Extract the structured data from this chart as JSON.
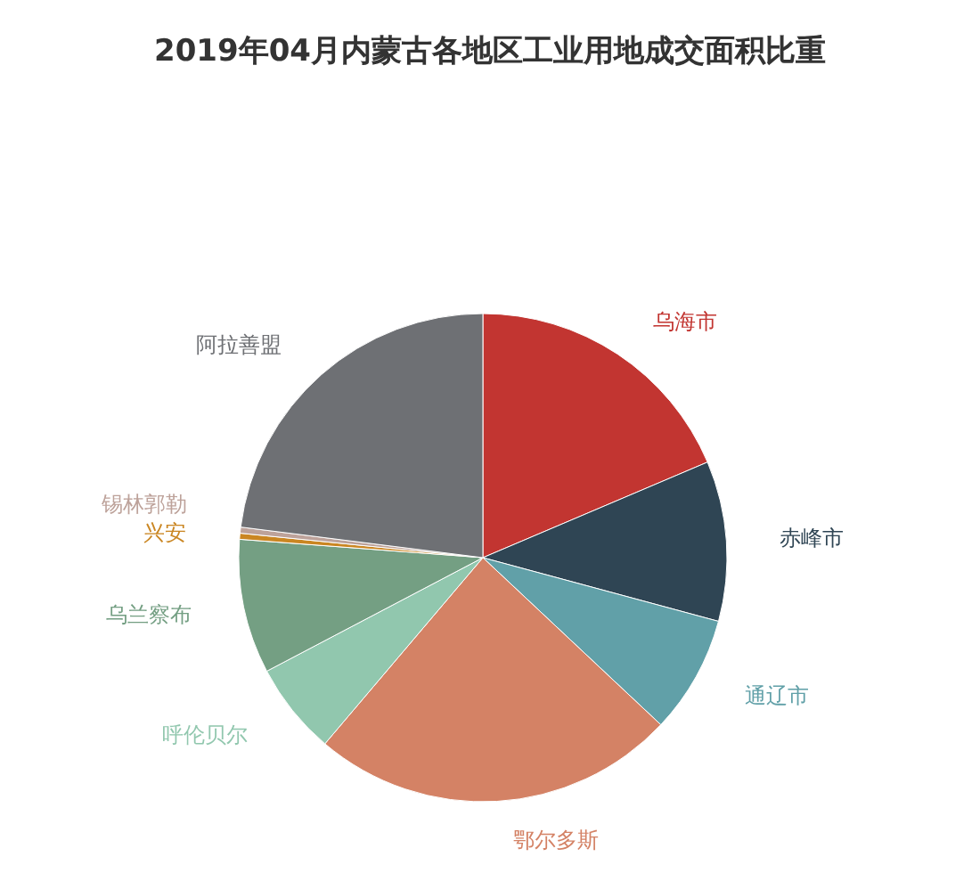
{
  "chart_data": {
    "type": "pie",
    "title": "2019年04月内蒙古各地区工业用地成交面积比重",
    "categories": [
      "乌海市",
      "赤峰市",
      "通辽市",
      "鄂尔多斯",
      "呼伦贝尔",
      "乌兰察布",
      "兴安",
      "锡林郭勒",
      "阿拉善盟"
    ],
    "values": [
      18.6,
      10.6,
      7.8,
      24.2,
      6.1,
      8.9,
      0.4,
      0.4,
      23.0
    ],
    "colors": [
      "#c23531",
      "#2f4554",
      "#61a0a8",
      "#d48265",
      "#91c7ae",
      "#749f83",
      "#ca8622",
      "#bda29a",
      "#6e7074"
    ],
    "legend": false
  }
}
